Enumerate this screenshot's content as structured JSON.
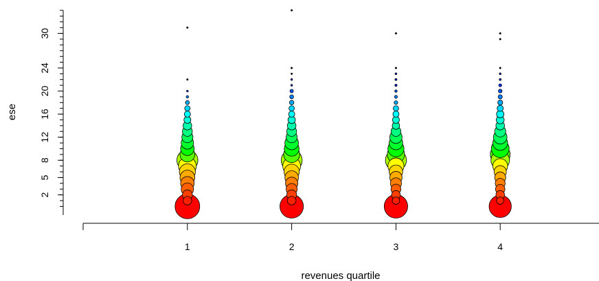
{
  "chart_data": {
    "type": "scatter",
    "xlabel": "revenues quartile",
    "ylabel": "ese",
    "x_categories": [
      "1",
      "2",
      "3",
      "4"
    ],
    "x_ticks": [
      "1",
      "2",
      "3",
      "4"
    ],
    "y_ticks": [
      "2",
      "5",
      "8",
      "12",
      "16",
      "20",
      "24",
      "30"
    ],
    "xlim": [
      0,
      5
    ],
    "ylim": [
      -1.5,
      34
    ],
    "grid": false,
    "legend": "none",
    "size_encodes": "frequency",
    "color_scale": [
      "#ff0000",
      "#ff7f00",
      "#ffff00",
      "#00ff00",
      "#00ffff",
      "#0000ff"
    ],
    "series": [
      {
        "x": "1",
        "points": [
          {
            "y": 0,
            "size": 1.0
          },
          {
            "y": 1,
            "size": 0.35
          },
          {
            "y": 2,
            "size": 0.4
          },
          {
            "y": 3,
            "size": 0.5
          },
          {
            "y": 4,
            "size": 0.55
          },
          {
            "y": 5,
            "size": 0.6
          },
          {
            "y": 6,
            "size": 0.65
          },
          {
            "y": 7,
            "size": 0.72
          },
          {
            "y": 8,
            "size": 0.85
          },
          {
            "y": 9,
            "size": 0.6
          },
          {
            "y": 10,
            "size": 0.55
          },
          {
            "y": 11,
            "size": 0.5
          },
          {
            "y": 12,
            "size": 0.45
          },
          {
            "y": 13,
            "size": 0.4
          },
          {
            "y": 14,
            "size": 0.35
          },
          {
            "y": 15,
            "size": 0.28
          },
          {
            "y": 16,
            "size": 0.25
          },
          {
            "y": 17,
            "size": 0.22
          },
          {
            "y": 18,
            "size": 0.16
          },
          {
            "y": 19,
            "size": 0.1
          },
          {
            "y": 20,
            "size": 0.07
          },
          {
            "y": 22,
            "size": 0.05
          },
          {
            "y": 31,
            "size": 0.05
          }
        ]
      },
      {
        "x": "2",
        "points": [
          {
            "y": 0,
            "size": 0.95
          },
          {
            "y": 1,
            "size": 0.35
          },
          {
            "y": 2,
            "size": 0.4
          },
          {
            "y": 3,
            "size": 0.45
          },
          {
            "y": 4,
            "size": 0.5
          },
          {
            "y": 5,
            "size": 0.55
          },
          {
            "y": 6,
            "size": 0.62
          },
          {
            "y": 7,
            "size": 0.72
          },
          {
            "y": 8,
            "size": 0.85
          },
          {
            "y": 9,
            "size": 0.65
          },
          {
            "y": 10,
            "size": 0.6
          },
          {
            "y": 11,
            "size": 0.55
          },
          {
            "y": 12,
            "size": 0.45
          },
          {
            "y": 13,
            "size": 0.4
          },
          {
            "y": 14,
            "size": 0.35
          },
          {
            "y": 15,
            "size": 0.3
          },
          {
            "y": 16,
            "size": 0.25
          },
          {
            "y": 17,
            "size": 0.22
          },
          {
            "y": 18,
            "size": 0.18
          },
          {
            "y": 19,
            "size": 0.16
          },
          {
            "y": 20,
            "size": 0.14
          },
          {
            "y": 21,
            "size": 0.07
          },
          {
            "y": 22,
            "size": 0.06
          },
          {
            "y": 23,
            "size": 0.05
          },
          {
            "y": 24,
            "size": 0.05
          },
          {
            "y": 34,
            "size": 0.05
          }
        ]
      },
      {
        "x": "3",
        "points": [
          {
            "y": 0,
            "size": 0.95
          },
          {
            "y": 1,
            "size": 0.3
          },
          {
            "y": 2,
            "size": 0.35
          },
          {
            "y": 3,
            "size": 0.4
          },
          {
            "y": 4,
            "size": 0.45
          },
          {
            "y": 5,
            "size": 0.5
          },
          {
            "y": 6,
            "size": 0.55
          },
          {
            "y": 7,
            "size": 0.65
          },
          {
            "y": 8,
            "size": 0.85
          },
          {
            "y": 9,
            "size": 0.7
          },
          {
            "y": 10,
            "size": 0.65
          },
          {
            "y": 11,
            "size": 0.55
          },
          {
            "y": 12,
            "size": 0.5
          },
          {
            "y": 13,
            "size": 0.4
          },
          {
            "y": 14,
            "size": 0.3
          },
          {
            "y": 15,
            "size": 0.28
          },
          {
            "y": 16,
            "size": 0.25
          },
          {
            "y": 17,
            "size": 0.22
          },
          {
            "y": 18,
            "size": 0.15
          },
          {
            "y": 19,
            "size": 0.12
          },
          {
            "y": 20,
            "size": 0.1
          },
          {
            "y": 21,
            "size": 0.09
          },
          {
            "y": 22,
            "size": 0.08
          },
          {
            "y": 23,
            "size": 0.06
          },
          {
            "y": 24,
            "size": 0.05
          },
          {
            "y": 30,
            "size": 0.05
          }
        ]
      },
      {
        "x": "4",
        "points": [
          {
            "y": 0,
            "size": 0.9
          },
          {
            "y": 1,
            "size": 0.3
          },
          {
            "y": 2,
            "size": 0.35
          },
          {
            "y": 3,
            "size": 0.38
          },
          {
            "y": 4,
            "size": 0.4
          },
          {
            "y": 5,
            "size": 0.45
          },
          {
            "y": 6,
            "size": 0.5
          },
          {
            "y": 7,
            "size": 0.6
          },
          {
            "y": 8,
            "size": 0.75
          },
          {
            "y": 9,
            "size": 0.8
          },
          {
            "y": 10,
            "size": 0.72
          },
          {
            "y": 11,
            "size": 0.6
          },
          {
            "y": 12,
            "size": 0.55
          },
          {
            "y": 13,
            "size": 0.45
          },
          {
            "y": 14,
            "size": 0.35
          },
          {
            "y": 15,
            "size": 0.32
          },
          {
            "y": 16,
            "size": 0.3
          },
          {
            "y": 17,
            "size": 0.25
          },
          {
            "y": 18,
            "size": 0.2
          },
          {
            "y": 19,
            "size": 0.17
          },
          {
            "y": 20,
            "size": 0.15
          },
          {
            "y": 21,
            "size": 0.12
          },
          {
            "y": 22,
            "size": 0.08
          },
          {
            "y": 23,
            "size": 0.06
          },
          {
            "y": 24,
            "size": 0.05
          },
          {
            "y": 29,
            "size": 0.05
          },
          {
            "y": 30,
            "size": 0.05
          }
        ]
      }
    ]
  }
}
